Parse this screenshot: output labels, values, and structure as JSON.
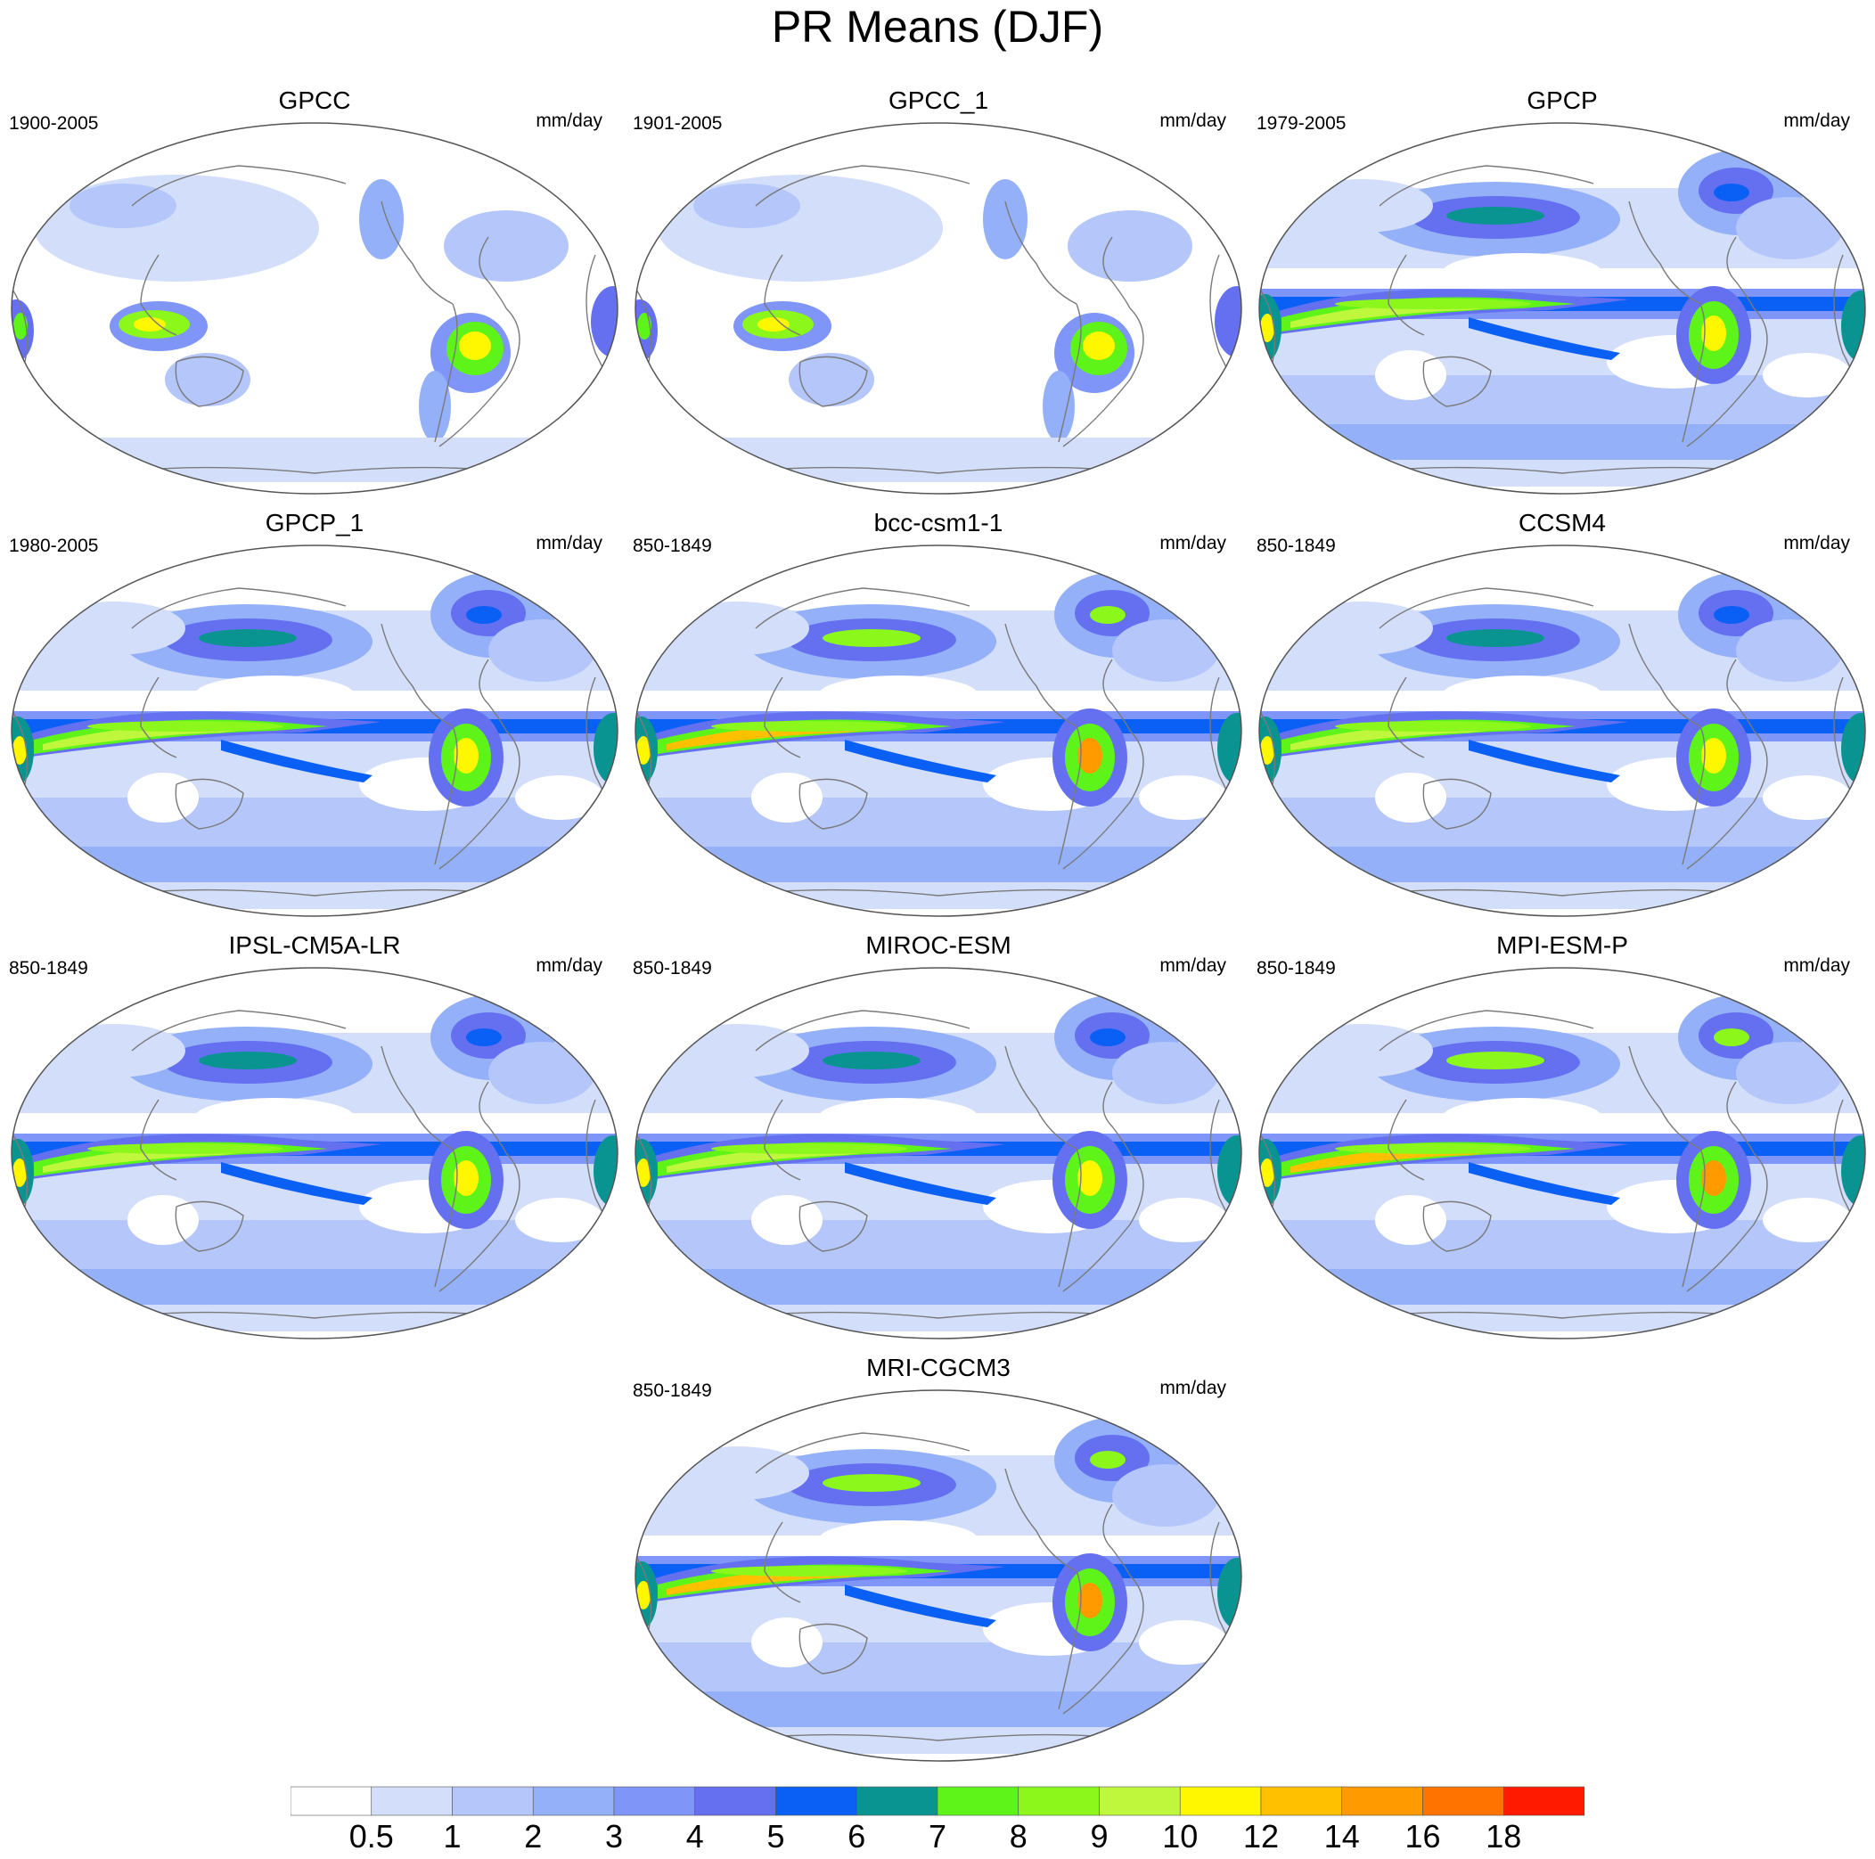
{
  "title": "PR Means (DJF)",
  "panels": [
    {
      "name": "GPCC",
      "period": "1900-2005",
      "units": "mm/day",
      "style": "obs"
    },
    {
      "name": "GPCC_1",
      "period": "1901-2005",
      "units": "mm/day",
      "style": "obs"
    },
    {
      "name": "GPCP",
      "period": "1979-2005",
      "units": "mm/day",
      "style": "model"
    },
    {
      "name": "GPCP_1",
      "period": "1980-2005",
      "units": "mm/day",
      "style": "model"
    },
    {
      "name": "bcc-csm1-1",
      "period": "850-1849",
      "units": "mm/day",
      "style": "model_strong"
    },
    {
      "name": "CCSM4",
      "period": "850-1849",
      "units": "mm/day",
      "style": "model"
    },
    {
      "name": "IPSL-CM5A-LR",
      "period": "850-1849",
      "units": "mm/day",
      "style": "model"
    },
    {
      "name": "MIROC-ESM",
      "period": "850-1849",
      "units": "mm/day",
      "style": "model"
    },
    {
      "name": "MPI-ESM-P",
      "period": "850-1849",
      "units": "mm/day",
      "style": "model_strong"
    },
    {
      "name": "MRI-CGCM3",
      "period": "850-1849",
      "units": "mm/day",
      "style": "model_strong"
    }
  ],
  "colorbar": {
    "labels": [
      "0.5",
      "1",
      "2",
      "3",
      "4",
      "5",
      "6",
      "7",
      "8",
      "9",
      "10",
      "12",
      "14",
      "16",
      "18"
    ],
    "colors": [
      "#ffffff",
      "#d3defa",
      "#b4c6fa",
      "#94b0f8",
      "#7f95f7",
      "#6470f0",
      "#0a5ff5",
      "#0a9491",
      "#5ef41a",
      "#8cf71a",
      "#bff73c",
      "#fff700",
      "#ffc000",
      "#ff9a00",
      "#ff7400",
      "#ff1a00"
    ]
  }
}
